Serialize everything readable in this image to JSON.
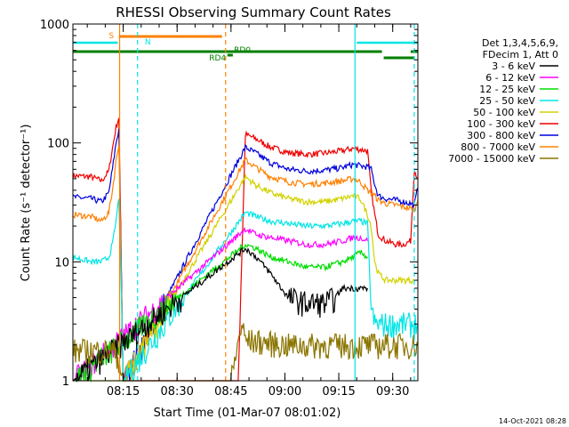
{
  "chart_data": {
    "type": "line",
    "title": "RHESSI Observing Summary Count Rates",
    "xlabel": "Start Time (01-Mar-07 08:01:02)",
    "ylabel": "Count Rate (s⁻¹ detector⁻¹)",
    "y_scale": "log",
    "ylim": [
      1,
      1000
    ],
    "xlim_minutes": [
      0,
      96
    ],
    "x_ticks": [
      {
        "m": 14,
        "label": "08:15"
      },
      {
        "m": 29,
        "label": "08:30"
      },
      {
        "m": 44,
        "label": "08:45"
      },
      {
        "m": 59,
        "label": "09:00"
      },
      {
        "m": 74,
        "label": "09:15"
      },
      {
        "m": 89,
        "label": "09:30"
      }
    ],
    "y_ticks": [
      {
        "v": 1,
        "label": "1"
      },
      {
        "v": 10,
        "label": "10"
      },
      {
        "v": 100,
        "label": "100"
      },
      {
        "v": 1000,
        "label": "1000"
      }
    ],
    "legend": {
      "position": "right",
      "header": [
        "Det 1,3,4,5,6,9,",
        "FDecim 1, Att 0"
      ],
      "entries": [
        {
          "label": "3 - 6 keV",
          "color": "#000000"
        },
        {
          "label": "6 - 12 keV",
          "color": "#ff00ff"
        },
        {
          "label": "12 - 25 keV",
          "color": "#00dd00"
        },
        {
          "label": "25 - 50 keV",
          "color": "#00e5e5"
        },
        {
          "label": "50 - 100 keV",
          "color": "#d2d200"
        },
        {
          "label": "100 - 300 keV",
          "color": "#ee0000"
        },
        {
          "label": "300 - 800 keV",
          "color": "#0000dd"
        },
        {
          "label": "800 - 7000 keV",
          "color": "#ff8000"
        },
        {
          "label": "7000 - 15000 keV",
          "color": "#8b7500"
        }
      ]
    },
    "flags": [
      {
        "label": "S",
        "color": "#ff8000"
      },
      {
        "label": "N",
        "color": "#00e5e5"
      },
      {
        "label": "RD0",
        "color": "#008000"
      },
      {
        "label": "RD4",
        "color": "#008000"
      }
    ],
    "series": [
      {
        "color": "#ee0000",
        "x": [
          0,
          5,
          8,
          10,
          11,
          12,
          12.8,
          14,
          33,
          40,
          42,
          44,
          46,
          48,
          51,
          55,
          60,
          65,
          70,
          75,
          78,
          80,
          82,
          83,
          84,
          85,
          87,
          90,
          92,
          94,
          95,
          96
        ],
        "y": [
          53,
          52,
          48,
          58,
          90,
          135,
          165,
          1,
          1,
          1,
          1,
          1,
          1,
          118,
          108,
          92,
          83,
          80,
          82,
          86,
          90,
          88,
          86,
          40,
          25,
          17,
          15,
          14,
          14,
          15,
          60,
          50
        ]
      },
      {
        "color": "#0000dd",
        "x": [
          0,
          5,
          8,
          10,
          11,
          12,
          12.8,
          14,
          48,
          51,
          55,
          60,
          65,
          70,
          75,
          78,
          80,
          82,
          83,
          84,
          85,
          87,
          90,
          92,
          94,
          95,
          96
        ],
        "y": [
          35,
          34,
          32,
          38,
          60,
          100,
          130,
          1,
          92,
          82,
          68,
          60,
          58,
          59,
          62,
          66,
          64,
          63,
          60,
          45,
          36,
          34,
          33,
          32,
          31,
          30,
          42
        ]
      },
      {
        "color": "#ff8000",
        "x": [
          0,
          5,
          8,
          10,
          11,
          12,
          12.8,
          14,
          48,
          51,
          55,
          60,
          65,
          70,
          75,
          78,
          80,
          82,
          84,
          85,
          87,
          90,
          92,
          94,
          95,
          96
        ],
        "y": [
          25,
          24,
          22,
          26,
          40,
          70,
          100,
          1,
          72,
          62,
          52,
          47,
          45,
          46,
          48,
          50,
          47,
          40,
          36,
          33,
          31,
          30,
          29,
          28,
          27,
          33
        ]
      },
      {
        "color": "#d2d200",
        "x": [
          0,
          5,
          8,
          10,
          11,
          12,
          12.8,
          14,
          48,
          51,
          55,
          60,
          65,
          70,
          75,
          78,
          80,
          82,
          83,
          84,
          85,
          87,
          90,
          92,
          94,
          95
        ],
        "y": [
          1,
          1,
          1,
          1,
          1,
          1,
          1,
          1,
          52,
          44,
          38,
          34,
          32,
          32,
          34,
          36,
          34,
          25,
          20,
          10,
          8,
          7,
          7,
          7,
          7,
          7
        ]
      },
      {
        "color": "#00e5e5",
        "x": [
          0,
          5,
          8,
          10,
          11,
          12,
          12.8,
          14,
          48,
          51,
          55,
          60,
          65,
          70,
          75,
          78,
          80,
          82,
          83,
          84,
          85,
          87,
          90,
          92,
          94,
          95,
          96
        ],
        "y": [
          11,
          10,
          10,
          11,
          14,
          22,
          35,
          1,
          26,
          24,
          22,
          21,
          20,
          20,
          21,
          22,
          22,
          21,
          4,
          3,
          3,
          3,
          3,
          3,
          3,
          3,
          3
        ]
      },
      {
        "color": "#ff00ff",
        "x": [
          0,
          48,
          51,
          55,
          60,
          65,
          70,
          75,
          78,
          80,
          82
        ],
        "y": [
          1,
          19,
          17,
          16,
          15,
          14,
          14,
          15,
          16,
          16,
          15
        ]
      },
      {
        "color": "#00dd00",
        "x": [
          0,
          48,
          51,
          55,
          60,
          65,
          70,
          75,
          78,
          80,
          82
        ],
        "y": [
          1,
          14,
          13,
          11,
          10,
          9,
          9,
          10,
          11,
          12,
          11
        ]
      },
      {
        "color": "#000000",
        "x": [
          0,
          48,
          51,
          55,
          58,
          60,
          65,
          70,
          73,
          75,
          78,
          80,
          82
        ],
        "y": [
          1,
          13,
          11,
          8,
          6,
          5,
          4.5,
          4.5,
          5,
          6,
          6,
          6,
          6
        ]
      },
      {
        "color": "#8b7500",
        "x": [
          0,
          12,
          14,
          44,
          47,
          48,
          60,
          70,
          80,
          82,
          95,
          96
        ],
        "y": [
          1.8,
          1.8,
          1,
          1,
          3,
          2.2,
          2,
          2,
          2,
          2,
          2,
          2
        ]
      }
    ]
  },
  "footer": {
    "timestamp": "14-Oct-2021 08:28"
  }
}
